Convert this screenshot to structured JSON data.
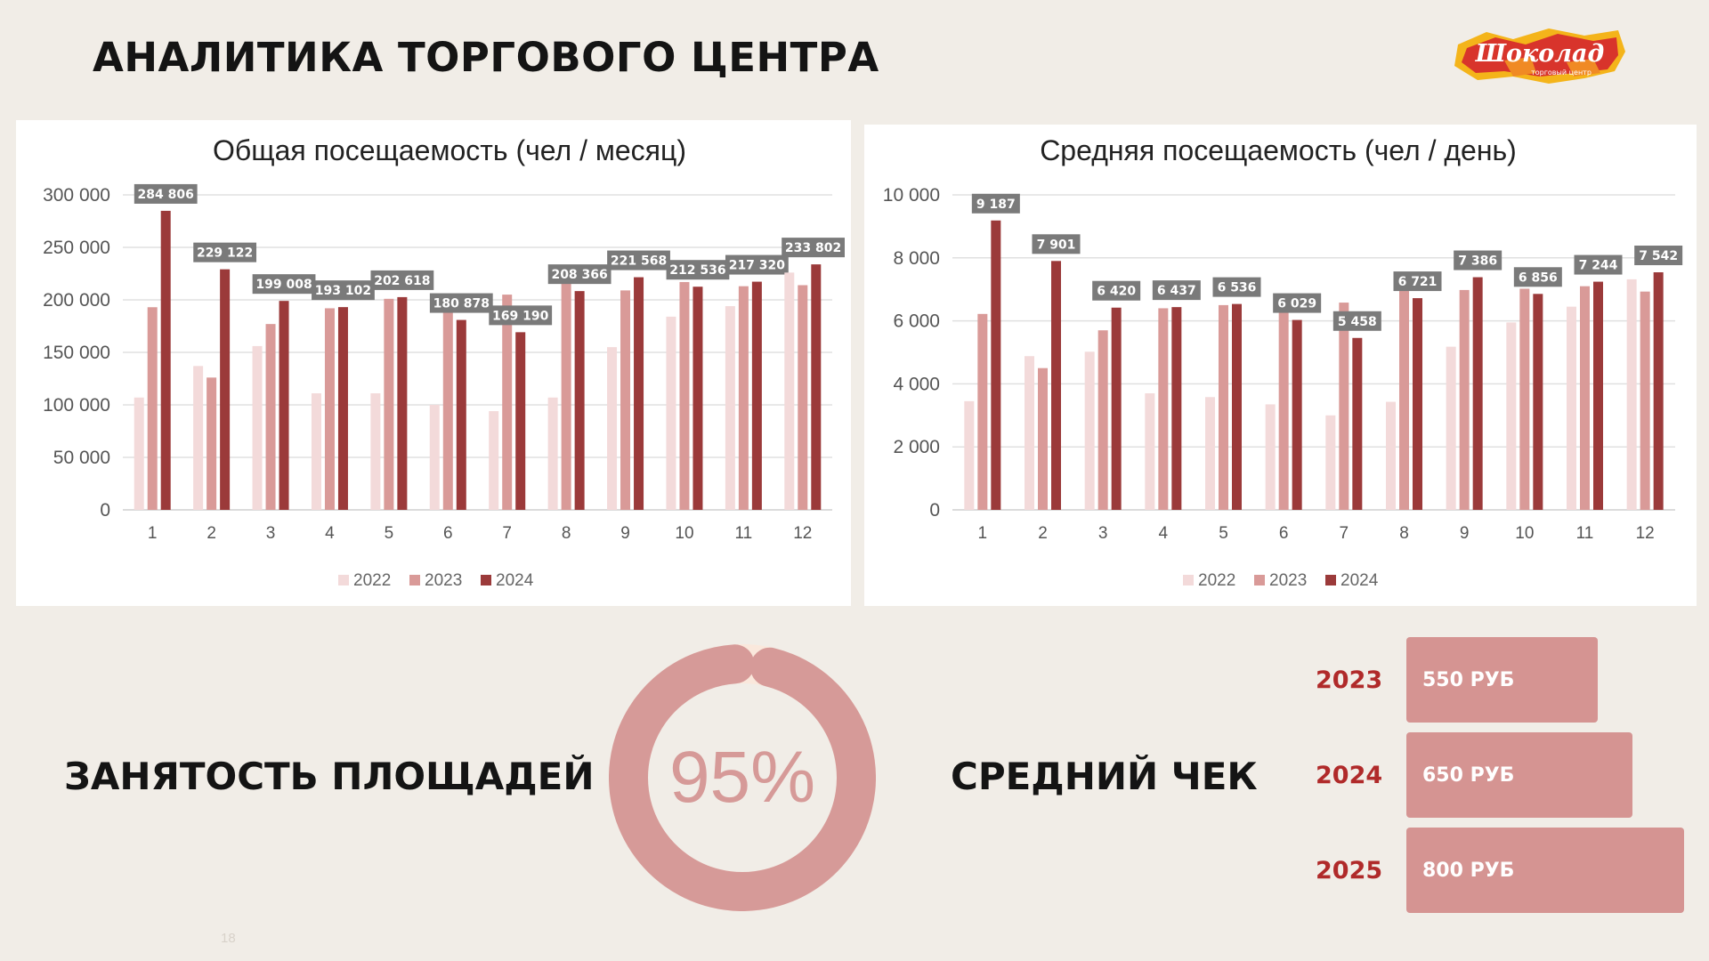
{
  "page": {
    "title": "АНАЛИТИКА ТОРГОВОГО ЦЕНТРА",
    "page_number": "18"
  },
  "logo": {
    "text": "Шоколад",
    "subtitle": "торговый центр",
    "colors": [
      "#d8342b",
      "#f4b41a",
      "#ffffff"
    ]
  },
  "colors": {
    "2022": "#f3dada",
    "2023": "#d99a98",
    "2024": "#9b3a3a",
    "label_box": "#7a7a7a",
    "accent": "#d59492",
    "year_text": "#b02a2a"
  },
  "chart_data": [
    {
      "id": "monthly",
      "type": "bar",
      "title": "Общая посещаемость (чел / месяц)",
      "xlabel": "",
      "ylabel": "",
      "categories": [
        "1",
        "2",
        "3",
        "4",
        "5",
        "6",
        "7",
        "8",
        "9",
        "10",
        "11",
        "12"
      ],
      "ylim": [
        0,
        300000
      ],
      "yticks": [
        0,
        50000,
        100000,
        150000,
        200000,
        250000,
        300000
      ],
      "ytick_labels": [
        "0",
        "50 000",
        "100 000",
        "150 000",
        "200 000",
        "250 000",
        "300 000"
      ],
      "grid": true,
      "legend": "bottom",
      "series": [
        {
          "name": "2022",
          "values": [
            107000,
            137000,
            156000,
            111000,
            111000,
            100000,
            94000,
            107000,
            155000,
            184000,
            194000,
            226000
          ]
        },
        {
          "name": "2023",
          "values": [
            193000,
            126000,
            177000,
            192000,
            201000,
            192000,
            205000,
            218000,
            209000,
            217000,
            213000,
            214000
          ]
        },
        {
          "name": "2024",
          "values": [
            284806,
            229122,
            199008,
            193102,
            202618,
            180878,
            169190,
            208366,
            221568,
            212536,
            217320,
            233802
          ]
        }
      ],
      "data_labels": [
        "284 806",
        "229 122",
        "199 008",
        "193 102",
        "202 618",
        "180 878",
        "169 190",
        "208 366",
        "221 568",
        "212 536",
        "217 320",
        "233 802"
      ]
    },
    {
      "id": "daily",
      "type": "bar",
      "title": "Средняя посещаемость (чел / день)",
      "xlabel": "",
      "ylabel": "",
      "categories": [
        "1",
        "2",
        "3",
        "4",
        "5",
        "6",
        "7",
        "8",
        "9",
        "10",
        "11",
        "12"
      ],
      "ylim": [
        0,
        10000
      ],
      "yticks": [
        0,
        2000,
        4000,
        6000,
        8000,
        10000
      ],
      "ytick_labels": [
        "0",
        "2 000",
        "4 000",
        "6 000",
        "8 000",
        "10 000"
      ],
      "grid": true,
      "legend": "bottom",
      "series": [
        {
          "name": "2022",
          "values": [
            3450,
            4880,
            5020,
            3700,
            3580,
            3350,
            3000,
            3430,
            5180,
            5950,
            6450,
            7320
          ]
        },
        {
          "name": "2023",
          "values": [
            6220,
            4500,
            5700,
            6400,
            6500,
            6580,
            6580,
            7020,
            6980,
            7020,
            7100,
            6930
          ]
        },
        {
          "name": "2024",
          "values": [
            9187,
            7901,
            6420,
            6437,
            6536,
            6029,
            5458,
            6721,
            7386,
            6856,
            7244,
            7542
          ]
        }
      ],
      "data_labels": [
        "9 187",
        "7 901",
        "6 420",
        "6 437",
        "6 536",
        "6 029",
        "5 458",
        "6 721",
        "7 386",
        "6 856",
        "7 244",
        "7 542"
      ]
    }
  ],
  "occupancy": {
    "heading": "ЗАНЯТОСТЬ ПЛОЩАДЕЙ",
    "value_label": "95%",
    "fraction": 0.95,
    "color": "#d69a98",
    "remainder_color": "#fae8dc"
  },
  "average_check": {
    "heading": "СРЕДНИЙ ЧЕК",
    "rows": [
      {
        "year": "2023",
        "label": "550 РУБ",
        "value": 550
      },
      {
        "year": "2024",
        "label": "650 РУБ",
        "value": 650
      },
      {
        "year": "2025",
        "label": "800 РУБ",
        "value": 800
      }
    ]
  }
}
